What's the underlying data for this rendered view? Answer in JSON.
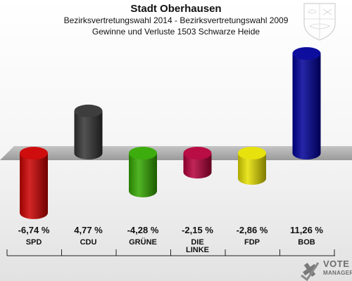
{
  "header": {
    "title": "Stadt Oberhausen",
    "subtitle1": "Bezirksvertretungswahl 2014 - Bezirksvertretungswahl 2009",
    "subtitle2": "Gewinne und Verluste 1503 Schwarze Heide"
  },
  "chart_data": {
    "type": "bar",
    "categories": [
      "SPD",
      "CDU",
      "GRÜNE",
      "DIE LINKE",
      "FDP",
      "BOB"
    ],
    "category_lines": [
      [
        "SPD"
      ],
      [
        "CDU"
      ],
      [
        "GRÜNE"
      ],
      [
        "DIE",
        "LINKE"
      ],
      [
        "FDP"
      ],
      [
        "BOB"
      ]
    ],
    "values": [
      -6.74,
      4.77,
      -4.28,
      -2.15,
      -2.86,
      11.26
    ],
    "value_labels": [
      "-6,74 %",
      "4,77 %",
      "-4,28 %",
      "-2,15 %",
      "-2,86 %",
      "11,26 %"
    ],
    "colors": [
      "#cc0000",
      "#333333",
      "#33a800",
      "#b5003b",
      "#e6e000",
      "#000099"
    ],
    "ylim": [
      -7,
      12
    ]
  },
  "branding": {
    "logo_line1": "VOTE",
    "logo_line2": "MANAGER"
  }
}
